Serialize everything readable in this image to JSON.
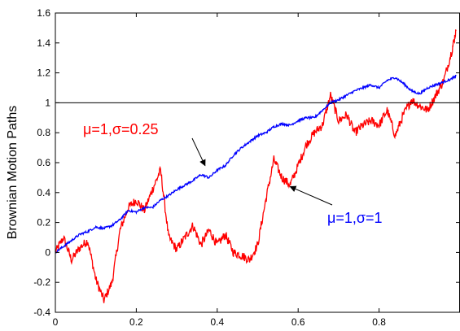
{
  "chart_data": {
    "type": "line",
    "ylabel": "Brownian Motion Paths",
    "xlim": [
      0,
      1
    ],
    "ylim": [
      -0.4,
      1.6
    ],
    "x_ticks": [
      0,
      0.2,
      0.4,
      0.6,
      0.8
    ],
    "x_tick_labels": [
      "0",
      "0.2",
      "0.4",
      "0.6",
      "0.8"
    ],
    "y_ticks": [
      -0.4,
      -0.2,
      0,
      0.2,
      0.4,
      0.6,
      0.8,
      1,
      1.2,
      1.4,
      1.6
    ],
    "y_tick_labels": [
      "-0.4",
      "-0.2",
      "0",
      "0.2",
      "0.4",
      "0.6",
      "0.8",
      "1",
      "1.2",
      "1.4",
      "1.6"
    ],
    "grid": false,
    "reference_lines": [
      {
        "y": 1,
        "color": "#000000"
      }
    ],
    "series": [
      {
        "color": "#ff0000",
        "points": [
          [
            0,
            0
          ],
          [
            0.02,
            0.1
          ],
          [
            0.04,
            -0.05
          ],
          [
            0.06,
            0.03
          ],
          [
            0.08,
            0.08
          ],
          [
            0.1,
            -0.18
          ],
          [
            0.12,
            -0.32
          ],
          [
            0.14,
            -0.2
          ],
          [
            0.16,
            0.15
          ],
          [
            0.18,
            0.3
          ],
          [
            0.2,
            0.35
          ],
          [
            0.22,
            0.28
          ],
          [
            0.24,
            0.42
          ],
          [
            0.26,
            0.55
          ],
          [
            0.28,
            0.1
          ],
          [
            0.3,
            0.02
          ],
          [
            0.32,
            0.1
          ],
          [
            0.34,
            0.18
          ],
          [
            0.36,
            0.05
          ],
          [
            0.38,
            0.15
          ],
          [
            0.4,
            0.05
          ],
          [
            0.42,
            0.12
          ],
          [
            0.44,
            0.0
          ],
          [
            0.46,
            -0.02
          ],
          [
            0.48,
            -0.05
          ],
          [
            0.5,
            0.05
          ],
          [
            0.52,
            0.35
          ],
          [
            0.54,
            0.62
          ],
          [
            0.56,
            0.5
          ],
          [
            0.58,
            0.45
          ],
          [
            0.6,
            0.58
          ],
          [
            0.62,
            0.72
          ],
          [
            0.64,
            0.8
          ],
          [
            0.66,
            0.85
          ],
          [
            0.68,
            1.05
          ],
          [
            0.7,
            0.88
          ],
          [
            0.72,
            0.92
          ],
          [
            0.74,
            0.8
          ],
          [
            0.76,
            0.85
          ],
          [
            0.78,
            0.88
          ],
          [
            0.8,
            0.85
          ],
          [
            0.82,
            0.95
          ],
          [
            0.84,
            0.78
          ],
          [
            0.86,
            0.92
          ],
          [
            0.88,
            1.02
          ],
          [
            0.9,
            0.98
          ],
          [
            0.92,
            0.95
          ],
          [
            0.94,
            1.05
          ],
          [
            0.96,
            1.15
          ],
          [
            0.98,
            1.35
          ],
          [
            0.99,
            1.48
          ]
        ]
      },
      {
        "color": "#0000ff",
        "points": [
          [
            0,
            0
          ],
          [
            0.02,
            0.04
          ],
          [
            0.04,
            0.08
          ],
          [
            0.06,
            0.12
          ],
          [
            0.08,
            0.14
          ],
          [
            0.1,
            0.17
          ],
          [
            0.12,
            0.16
          ],
          [
            0.14,
            0.18
          ],
          [
            0.16,
            0.22
          ],
          [
            0.18,
            0.28
          ],
          [
            0.2,
            0.27
          ],
          [
            0.22,
            0.3
          ],
          [
            0.24,
            0.3
          ],
          [
            0.26,
            0.35
          ],
          [
            0.28,
            0.38
          ],
          [
            0.3,
            0.42
          ],
          [
            0.32,
            0.45
          ],
          [
            0.34,
            0.48
          ],
          [
            0.36,
            0.52
          ],
          [
            0.38,
            0.5
          ],
          [
            0.4,
            0.55
          ],
          [
            0.42,
            0.58
          ],
          [
            0.44,
            0.65
          ],
          [
            0.46,
            0.7
          ],
          [
            0.48,
            0.74
          ],
          [
            0.5,
            0.78
          ],
          [
            0.52,
            0.8
          ],
          [
            0.54,
            0.84
          ],
          [
            0.56,
            0.86
          ],
          [
            0.58,
            0.85
          ],
          [
            0.6,
            0.88
          ],
          [
            0.62,
            0.9
          ],
          [
            0.64,
            0.9
          ],
          [
            0.66,
            0.95
          ],
          [
            0.68,
            1.0
          ],
          [
            0.7,
            1.02
          ],
          [
            0.72,
            1.05
          ],
          [
            0.74,
            1.08
          ],
          [
            0.76,
            1.1
          ],
          [
            0.78,
            1.12
          ],
          [
            0.8,
            1.1
          ],
          [
            0.82,
            1.15
          ],
          [
            0.84,
            1.17
          ],
          [
            0.86,
            1.13
          ],
          [
            0.88,
            1.08
          ],
          [
            0.9,
            1.06
          ],
          [
            0.92,
            1.1
          ],
          [
            0.94,
            1.12
          ],
          [
            0.96,
            1.14
          ],
          [
            0.98,
            1.16
          ],
          [
            0.99,
            1.18
          ]
        ]
      }
    ],
    "annotations": [
      {
        "text": "μ=1,σ=0.25",
        "color": "#ff0000",
        "arrow_to": [
          0.37,
          0.58
        ]
      },
      {
        "text": "μ=1,σ=1",
        "color": "#0000ff",
        "arrow_to": [
          0.58,
          0.44
        ]
      }
    ]
  }
}
